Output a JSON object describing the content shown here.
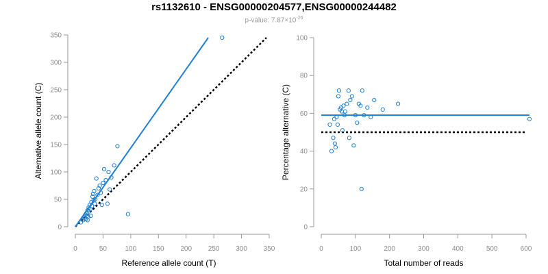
{
  "header": {
    "title": "rs1132610 - ENSG00000204577,ENSG00000244482",
    "pvalue_text": "p-value: 7.87×10",
    "pvalue_exponent": "-26"
  },
  "colors": {
    "accent": "#1f7fd4",
    "axis": "#999999",
    "reference": "#000000"
  },
  "chart_data": [
    {
      "type": "scatter",
      "xlabel": "Reference allele count (T)",
      "ylabel": "Alternative allele count (C)",
      "xlim": [
        0,
        350
      ],
      "ylim": [
        0,
        350
      ],
      "xticks": [
        0,
        50,
        100,
        150,
        200,
        250,
        300,
        350
      ],
      "yticks": [
        0,
        50,
        100,
        150,
        200,
        250,
        300,
        350
      ],
      "points": [
        [
          10,
          8
        ],
        [
          14,
          12
        ],
        [
          16,
          18
        ],
        [
          17,
          15
        ],
        [
          18,
          22
        ],
        [
          19,
          14
        ],
        [
          20,
          25
        ],
        [
          21,
          20
        ],
        [
          22,
          12
        ],
        [
          22,
          30
        ],
        [
          23,
          18
        ],
        [
          24,
          35
        ],
        [
          25,
          28
        ],
        [
          26,
          40
        ],
        [
          27,
          32
        ],
        [
          28,
          20
        ],
        [
          29,
          45
        ],
        [
          30,
          38
        ],
        [
          31,
          55
        ],
        [
          32,
          60
        ],
        [
          33,
          48
        ],
        [
          34,
          65
        ],
        [
          35,
          42
        ],
        [
          36,
          50
        ],
        [
          38,
          88
        ],
        [
          40,
          58
        ],
        [
          42,
          70
        ],
        [
          44,
          75
        ],
        [
          46,
          62
        ],
        [
          48,
          40
        ],
        [
          50,
          80
        ],
        [
          52,
          105
        ],
        [
          55,
          85
        ],
        [
          58,
          42
        ],
        [
          60,
          100
        ],
        [
          62,
          68
        ],
        [
          65,
          90
        ],
        [
          70,
          112
        ],
        [
          76,
          147
        ],
        [
          95,
          23
        ],
        [
          265,
          345
        ]
      ],
      "fit_line": [
        [
          0,
          0
        ],
        [
          240,
          345
        ]
      ],
      "reference_line": [
        [
          0,
          0
        ],
        [
          345,
          345
        ]
      ]
    },
    {
      "type": "scatter",
      "xlabel": "Total number of reads",
      "ylabel": "Percentage alternative (C)",
      "xlim": [
        0,
        600
      ],
      "ylim": [
        0,
        100
      ],
      "xticks": [
        0,
        100,
        200,
        300,
        400,
        500,
        600
      ],
      "yticks": [
        0,
        20,
        40,
        60,
        80,
        100
      ],
      "points": [
        [
          25,
          54
        ],
        [
          30,
          40
        ],
        [
          35,
          47
        ],
        [
          38,
          57
        ],
        [
          40,
          44
        ],
        [
          42,
          42
        ],
        [
          45,
          58
        ],
        [
          48,
          54
        ],
        [
          50,
          69
        ],
        [
          52,
          72
        ],
        [
          55,
          62
        ],
        [
          58,
          63
        ],
        [
          60,
          61
        ],
        [
          62,
          51
        ],
        [
          65,
          64
        ],
        [
          68,
          59
        ],
        [
          70,
          61
        ],
        [
          75,
          65
        ],
        [
          80,
          72
        ],
        [
          82,
          47
        ],
        [
          85,
          67
        ],
        [
          90,
          69
        ],
        [
          95,
          43
        ],
        [
          100,
          59
        ],
        [
          105,
          55
        ],
        [
          110,
          65
        ],
        [
          115,
          64
        ],
        [
          118,
          20
        ],
        [
          120,
          72
        ],
        [
          125,
          59
        ],
        [
          135,
          63
        ],
        [
          145,
          58
        ],
        [
          155,
          67
        ],
        [
          180,
          62
        ],
        [
          225,
          65
        ],
        [
          610,
          57
        ]
      ],
      "fit_line": [
        [
          0,
          59
        ],
        [
          610,
          59
        ]
      ],
      "reference_line": [
        [
          0,
          50
        ],
        [
          600,
          50
        ]
      ]
    }
  ]
}
